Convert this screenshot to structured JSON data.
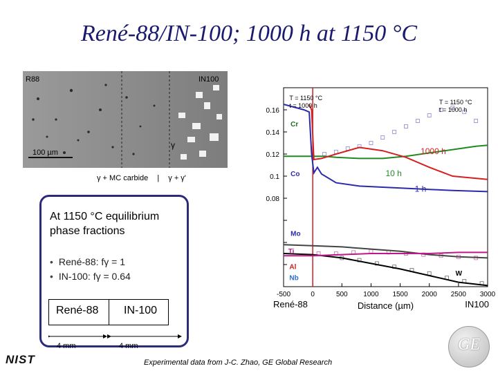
{
  "slide": {
    "title": "René-88/IN-100; 1000 h at 1150 °C"
  },
  "micrograph": {
    "left_label": "R88",
    "right_label": "IN100",
    "scale_bar": "100 µm",
    "gamma_label": "γ",
    "caption_left": "γ + MC carbide",
    "caption_right": "γ + γ'"
  },
  "callout": {
    "heading": "At 1150 °C equilibrium phase fractions",
    "bullets": [
      "René-88: fγ = 1",
      "IN-100: fγ = 0.64"
    ],
    "couple_left": "René-88",
    "couple_right": "IN-100",
    "dist_left": "4 mm",
    "dist_right": "4 mm"
  },
  "credit": "Experimental data from J-C. Zhao, GE Global Research",
  "logos": {
    "nist": "NIST",
    "ge": "GE"
  },
  "chart_data": {
    "type": "line",
    "xlabel": "Distance (µm)",
    "ylim": [
      0,
      0.18
    ],
    "xlim": [
      -500,
      3000
    ],
    "y_ticks": [
      0,
      0.02,
      0.04,
      0.06,
      0.08,
      0.1,
      0.12,
      0.14,
      0.16,
      0.18
    ],
    "y_tick_labels": [
      "",
      "",
      "",
      "",
      "0.08",
      "0.1",
      "0.12",
      "0.14",
      "0.16",
      ""
    ],
    "x_ticks": [
      -500,
      0,
      500,
      1000,
      1500,
      2000,
      2500,
      3000
    ],
    "x_tick_labels": [
      "-500",
      "0",
      "500",
      "1000",
      "1500",
      "2000",
      "2500",
      "3000"
    ],
    "x_axis_end_labels": [
      "René-88",
      "IN100"
    ],
    "condition_labels": [
      "T = 1150 °C\nt = 1000 h",
      "T = 1150 °C\nt = 1000 h"
    ],
    "time_labels": [
      {
        "text": "1000 h",
        "x": 1850,
        "y": 0.12,
        "color": "#d42020"
      },
      {
        "text": "10 h",
        "x": 1250,
        "y": 0.1,
        "color": "#1f8a1f"
      },
      {
        "text": "1 h",
        "x": 1750,
        "y": 0.086,
        "color": "#2a2aaa"
      }
    ],
    "element_labels": [
      {
        "text": "Cr",
        "x": -380,
        "y": 0.145,
        "color": "#1f6e1f"
      },
      {
        "text": "Co",
        "x": -380,
        "y": 0.1,
        "color": "#2a2aaa"
      },
      {
        "text": "Mo",
        "x": -380,
        "y": 0.046,
        "color": "#2a2aaa"
      },
      {
        "text": "Ti",
        "x": -420,
        "y": 0.03,
        "color": "#c0188a"
      },
      {
        "text": "Al",
        "x": -400,
        "y": 0.016,
        "color": "#c02020"
      },
      {
        "text": "Nb",
        "x": -400,
        "y": 0.006,
        "color": "#2a6fd0"
      },
      {
        "text": "W",
        "x": 2450,
        "y": 0.01,
        "color": "#000000"
      }
    ],
    "series": [
      {
        "name": "Cr",
        "color": "#1f8a1f",
        "x": [
          -500,
          -100,
          200,
          400,
          800,
          1200,
          1600,
          2000,
          2400,
          2800,
          3000
        ],
        "y": [
          0.118,
          0.118,
          0.118,
          0.117,
          0.116,
          0.116,
          0.118,
          0.121,
          0.124,
          0.127,
          0.128
        ]
      },
      {
        "name": "Co",
        "color": "#2a2aaa",
        "x": [
          -500,
          -150,
          -60,
          -20,
          20,
          80,
          150,
          400,
          800,
          1200,
          1600,
          2000,
          2400,
          3000
        ],
        "y": [
          0.165,
          0.16,
          0.158,
          0.12,
          0.103,
          0.108,
          0.102,
          0.094,
          0.091,
          0.09,
          0.089,
          0.088,
          0.087,
          0.086
        ]
      },
      {
        "name": "Co 1000 h",
        "color": "#d42020",
        "x": [
          -60,
          -20,
          20,
          150,
          400,
          800,
          1200,
          1600,
          2000,
          2400,
          3000
        ],
        "y": [
          0.165,
          0.16,
          0.115,
          0.116,
          0.12,
          0.126,
          0.123,
          0.117,
          0.108,
          0.1,
          0.097
        ]
      },
      {
        "name": "Mo",
        "color": "#444444",
        "x": [
          -500,
          0,
          500,
          1000,
          1500,
          2000,
          2500,
          3000
        ],
        "y": [
          0.038,
          0.037,
          0.036,
          0.034,
          0.032,
          0.029,
          0.027,
          0.026
        ]
      },
      {
        "name": "W",
        "color": "#000000",
        "x": [
          -500,
          0,
          500,
          1000,
          1500,
          2000,
          2500,
          3000
        ],
        "y": [
          0.03,
          0.029,
          0.026,
          0.021,
          0.016,
          0.01,
          0.004,
          0.001
        ]
      },
      {
        "name": "Ti",
        "color": "#c0188a",
        "x": [
          -500,
          0,
          500,
          1000,
          1500,
          2000,
          2500,
          3000
        ],
        "y": [
          0.028,
          0.028,
          0.029,
          0.03,
          0.03,
          0.03,
          0.031,
          0.031
        ]
      }
    ],
    "scatter": [
      {
        "name": "Co data",
        "color": "#8888cc",
        "x": [
          200,
          400,
          600,
          800,
          1000,
          1200,
          1400,
          1600,
          1800,
          2000,
          2200,
          2400,
          2600,
          2800
        ],
        "y": [
          0.12,
          0.122,
          0.125,
          0.127,
          0.13,
          0.135,
          0.14,
          0.145,
          0.15,
          0.155,
          0.16,
          0.162,
          0.158,
          0.15
        ]
      },
      {
        "name": "Ti data",
        "color": "#cc66aa",
        "x": [
          100,
          400,
          700,
          1000,
          1300,
          1600,
          1900,
          2200,
          2500,
          2800
        ],
        "y": [
          0.03,
          0.03,
          0.031,
          0.032,
          0.031,
          0.03,
          0.029,
          0.028,
          0.027,
          0.026
        ]
      },
      {
        "name": "W data",
        "color": "#666666",
        "x": [
          500,
          800,
          1100,
          1400,
          1700,
          2000,
          2300,
          2600,
          2900
        ],
        "y": [
          0.026,
          0.024,
          0.021,
          0.018,
          0.015,
          0.012,
          0.008,
          0.005,
          0.003
        ]
      }
    ]
  }
}
